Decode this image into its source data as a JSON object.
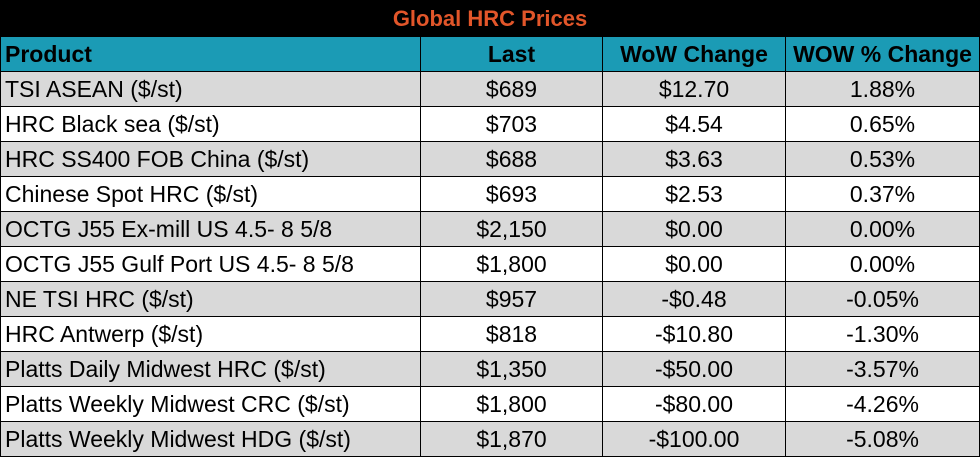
{
  "title": "Global HRC Prices",
  "colors": {
    "title_bg": "#000000",
    "title_text": "#e2562a",
    "header_bg": "#1b9bb5",
    "row_shade": "#d9d9d9",
    "row_plain": "#ffffff"
  },
  "columns": [
    "Product",
    "Last",
    "WoW Change",
    "WOW % Change"
  ],
  "rows": [
    {
      "product": "TSI ASEAN ($/st)",
      "last": "$689",
      "wow_change": "$12.70",
      "wow_pct": "1.88%"
    },
    {
      "product": "HRC Black sea ($/st)",
      "last": "$703",
      "wow_change": "$4.54",
      "wow_pct": "0.65%"
    },
    {
      "product": "HRC SS400 FOB China ($/st)",
      "last": "$688",
      "wow_change": "$3.63",
      "wow_pct": "0.53%"
    },
    {
      "product": "Chinese Spot HRC ($/st)",
      "last": "$693",
      "wow_change": "$2.53",
      "wow_pct": "0.37%"
    },
    {
      "product": "OCTG J55 Ex-mill US 4.5- 8 5/8",
      "last": "$2,150",
      "wow_change": "$0.00",
      "wow_pct": "0.00%"
    },
    {
      "product": "OCTG J55 Gulf Port US 4.5- 8 5/8",
      "last": "$1,800",
      "wow_change": "$0.00",
      "wow_pct": "0.00%"
    },
    {
      "product": "NE TSI HRC ($/st)",
      "last": "$957",
      "wow_change": "-$0.48",
      "wow_pct": "-0.05%"
    },
    {
      "product": "HRC Antwerp ($/st)",
      "last": "$818",
      "wow_change": "-$10.80",
      "wow_pct": "-1.30%"
    },
    {
      "product": "Platts Daily Midwest HRC ($/st)",
      "last": "$1,350",
      "wow_change": "-$50.00",
      "wow_pct": "-3.57%"
    },
    {
      "product": "Platts Weekly Midwest CRC ($/st)",
      "last": "$1,800",
      "wow_change": "-$80.00",
      "wow_pct": "-4.26%"
    },
    {
      "product": "Platts Weekly Midwest HDG ($/st)",
      "last": "$1,870",
      "wow_change": "-$100.00",
      "wow_pct": "-5.08%"
    }
  ]
}
